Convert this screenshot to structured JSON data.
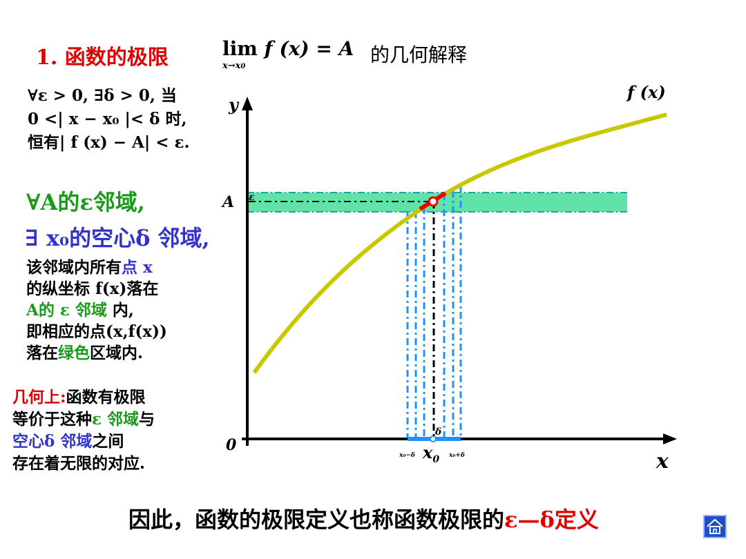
{
  "title": "1. 函数的极限",
  "formula": {
    "lim": "lim",
    "expr": " f (x) = A",
    "sub": "x→x",
    "sub_index": "0",
    "tail": "的几何解释"
  },
  "definition": {
    "line1": "∀ε > 0, ∃δ > 0, 当",
    "line2": "0 <| x − x₀ |< δ 时,",
    "line3": "恒有| f (x) − A| < ε."
  },
  "neighborhood": {
    "green": "∀A的ε邻域,",
    "blue": "∃ x₀的空心δ 邻域,"
  },
  "paragraph": {
    "l1a": "该邻域内所有",
    "l1b": "点 x",
    "l2": "的纵坐标 f(x)落在",
    "l3a": "A的 ε 邻域",
    "l3b": " 内,",
    "l4": "即相应的点(x,f(x))",
    "l5a": "落在",
    "l5b": "绿色",
    "l5c": "区域内."
  },
  "geometry": {
    "l1a": "几何上:",
    "l1b": "函数有极限",
    "l2a": "等价于这种",
    "l2b": "ε 邻域",
    "l2c": "与",
    "l3a": "空心δ 邻域",
    "l3b": "之间",
    "l4": "存在着无限的对应."
  },
  "bottom": {
    "text": "因此，函数的极限定义也称函数极限的",
    "highlight": "ε—δ定义"
  },
  "diagram": {
    "y_label": "y",
    "x_label": "x",
    "origin_label": "0",
    "curve_label": "f (x)",
    "a_label": "A",
    "eps_label": "ε",
    "delta_label": "δ",
    "x0_label": "x",
    "x0_index": "0",
    "left_tick": "x₀−δ",
    "right_tick": "x₀+δ",
    "colors": {
      "curve": "#c8c800",
      "band": "#44dd99",
      "delta": "#1e90ff",
      "highlight": "#ee0000"
    }
  },
  "home_icon": "home-icon"
}
